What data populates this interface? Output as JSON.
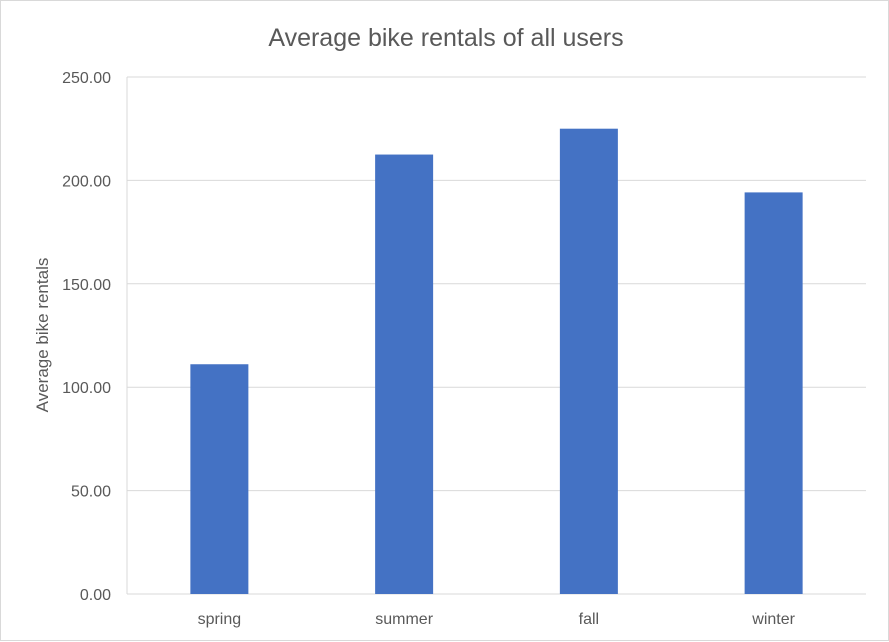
{
  "chart_data": {
    "type": "bar",
    "title": "Average bike rentals of all users",
    "xlabel": "",
    "ylabel": "Average bike rentals",
    "categories": [
      "spring",
      "summer",
      "fall",
      "winter"
    ],
    "values": [
      111.1,
      212.5,
      225.0,
      194.2
    ],
    "ylim": [
      0,
      250
    ],
    "yticks": [
      "0.00",
      "50.00",
      "100.00",
      "150.00",
      "200.00",
      "250.00"
    ],
    "ytick_values": [
      0,
      50,
      100,
      150,
      200,
      250
    ],
    "grid": true,
    "legend": "none",
    "bar_color": "#4472c4",
    "grid_color": "#d9d9d9",
    "text_color": "#595959"
  }
}
